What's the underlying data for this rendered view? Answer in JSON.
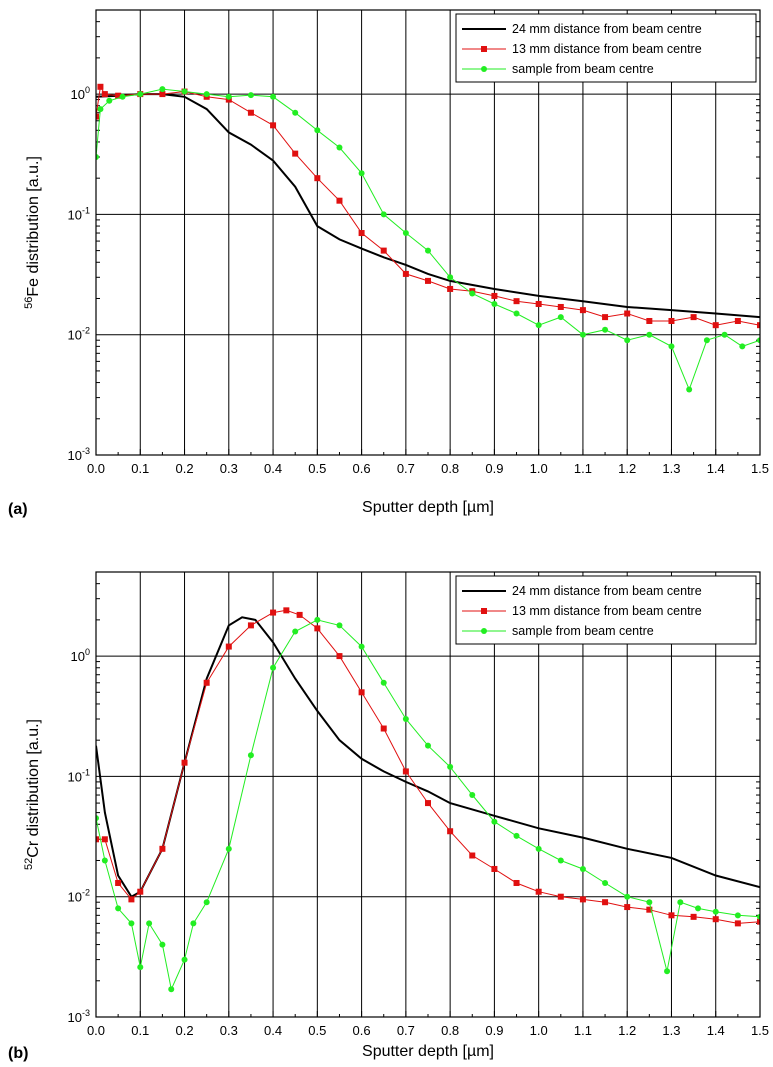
{
  "chart_data": [
    {
      "type": "line",
      "panel_label": "(a)",
      "xlabel": "Sputter depth [µm]",
      "ylabel_superscript": "56",
      "ylabel_rest": "Fe distribution [a.u.]",
      "xlim": [
        0.0,
        1.5
      ],
      "ylim": [
        0.001,
        5
      ],
      "yscale": "log",
      "grid": true,
      "legend_position": "top-right",
      "xticks": [
        "0.0",
        "0.1",
        "0.2",
        "0.3",
        "0.4",
        "0.5",
        "0.6",
        "0.7",
        "0.8",
        "0.9",
        "1.0",
        "1.1",
        "1.2",
        "1.3",
        "1.4",
        "1.5"
      ],
      "yticks": [
        {
          "value": 1,
          "base": "10",
          "exp": "0"
        },
        {
          "value": 0.1,
          "base": "10",
          "exp": "-1"
        },
        {
          "value": 0.01,
          "base": "10",
          "exp": "-2"
        },
        {
          "value": 0.001,
          "base": "10",
          "exp": "-3"
        }
      ],
      "series": [
        {
          "name": "24 mm distance from beam centre",
          "color": "#000000",
          "marker": "none",
          "points": [
            [
              0.0,
              0.95
            ],
            [
              0.05,
              0.97
            ],
            [
              0.1,
              1.0
            ],
            [
              0.15,
              1.0
            ],
            [
              0.2,
              0.95
            ],
            [
              0.25,
              0.75
            ],
            [
              0.3,
              0.48
            ],
            [
              0.35,
              0.38
            ],
            [
              0.4,
              0.28
            ],
            [
              0.45,
              0.17
            ],
            [
              0.5,
              0.08
            ],
            [
              0.55,
              0.062
            ],
            [
              0.6,
              0.052
            ],
            [
              0.65,
              0.044
            ],
            [
              0.7,
              0.038
            ],
            [
              0.75,
              0.032
            ],
            [
              0.8,
              0.028
            ],
            [
              0.9,
              0.024
            ],
            [
              1.0,
              0.021
            ],
            [
              1.1,
              0.019
            ],
            [
              1.2,
              0.017
            ],
            [
              1.3,
              0.016
            ],
            [
              1.4,
              0.015
            ],
            [
              1.5,
              0.014
            ]
          ]
        },
        {
          "name": "13 mm distance from beam centre",
          "color": "#e01010",
          "marker": "square",
          "points": [
            [
              0.0,
              0.65
            ],
            [
              0.01,
              1.15
            ],
            [
              0.02,
              1.0
            ],
            [
              0.05,
              0.97
            ],
            [
              0.1,
              1.0
            ],
            [
              0.15,
              1.0
            ],
            [
              0.2,
              1.05
            ],
            [
              0.25,
              0.95
            ],
            [
              0.3,
              0.9
            ],
            [
              0.35,
              0.7
            ],
            [
              0.4,
              0.55
            ],
            [
              0.45,
              0.32
            ],
            [
              0.5,
              0.2
            ],
            [
              0.55,
              0.13
            ],
            [
              0.6,
              0.07
            ],
            [
              0.65,
              0.05
            ],
            [
              0.7,
              0.032
            ],
            [
              0.75,
              0.028
            ],
            [
              0.8,
              0.024
            ],
            [
              0.85,
              0.023
            ],
            [
              0.9,
              0.021
            ],
            [
              0.95,
              0.019
            ],
            [
              1.0,
              0.018
            ],
            [
              1.05,
              0.017
            ],
            [
              1.1,
              0.016
            ],
            [
              1.15,
              0.014
            ],
            [
              1.2,
              0.015
            ],
            [
              1.25,
              0.013
            ],
            [
              1.3,
              0.013
            ],
            [
              1.35,
              0.014
            ],
            [
              1.4,
              0.012
            ],
            [
              1.45,
              0.013
            ],
            [
              1.5,
              0.012
            ]
          ]
        },
        {
          "name": "sample from beam centre",
          "color": "#22ee22",
          "marker": "circle",
          "points": [
            [
              0.0,
              0.3
            ],
            [
              0.01,
              0.75
            ],
            [
              0.03,
              0.88
            ],
            [
              0.06,
              0.95
            ],
            [
              0.1,
              1.0
            ],
            [
              0.15,
              1.1
            ],
            [
              0.2,
              1.05
            ],
            [
              0.25,
              1.0
            ],
            [
              0.3,
              0.95
            ],
            [
              0.35,
              0.98
            ],
            [
              0.4,
              0.95
            ],
            [
              0.45,
              0.7
            ],
            [
              0.5,
              0.5
            ],
            [
              0.55,
              0.36
            ],
            [
              0.6,
              0.22
            ],
            [
              0.65,
              0.1
            ],
            [
              0.7,
              0.07
            ],
            [
              0.75,
              0.05
            ],
            [
              0.8,
              0.03
            ],
            [
              0.85,
              0.022
            ],
            [
              0.9,
              0.018
            ],
            [
              0.95,
              0.015
            ],
            [
              1.0,
              0.012
            ],
            [
              1.05,
              0.014
            ],
            [
              1.1,
              0.01
            ],
            [
              1.15,
              0.011
            ],
            [
              1.2,
              0.009
            ],
            [
              1.25,
              0.01
            ],
            [
              1.3,
              0.008
            ],
            [
              1.34,
              0.0035
            ],
            [
              1.38,
              0.009
            ],
            [
              1.42,
              0.01
            ],
            [
              1.46,
              0.008
            ],
            [
              1.5,
              0.009
            ]
          ]
        }
      ]
    },
    {
      "type": "line",
      "panel_label": "(b)",
      "xlabel": "Sputter depth [µm]",
      "ylabel_superscript": "52",
      "ylabel_rest": "Cr distribution [a.u.]",
      "xlim": [
        0.0,
        1.5
      ],
      "ylim": [
        0.001,
        5
      ],
      "yscale": "log",
      "grid": true,
      "legend_position": "top-right",
      "xticks": [
        "0.0",
        "0.1",
        "0.2",
        "0.3",
        "0.4",
        "0.5",
        "0.6",
        "0.7",
        "0.8",
        "0.9",
        "1.0",
        "1.1",
        "1.2",
        "1.3",
        "1.4",
        "1.5"
      ],
      "yticks": [
        {
          "value": 1,
          "base": "10",
          "exp": "0"
        },
        {
          "value": 0.1,
          "base": "10",
          "exp": "-1"
        },
        {
          "value": 0.01,
          "base": "10",
          "exp": "-2"
        },
        {
          "value": 0.001,
          "base": "10",
          "exp": "-3"
        }
      ],
      "series": [
        {
          "name": "24 mm distance from beam centre",
          "color": "#000000",
          "marker": "none",
          "points": [
            [
              0.0,
              0.18
            ],
            [
              0.02,
              0.05
            ],
            [
              0.05,
              0.015
            ],
            [
              0.08,
              0.01
            ],
            [
              0.1,
              0.011
            ],
            [
              0.15,
              0.025
            ],
            [
              0.2,
              0.13
            ],
            [
              0.25,
              0.65
            ],
            [
              0.3,
              1.8
            ],
            [
              0.33,
              2.1
            ],
            [
              0.36,
              2.0
            ],
            [
              0.4,
              1.3
            ],
            [
              0.45,
              0.65
            ],
            [
              0.5,
              0.35
            ],
            [
              0.55,
              0.2
            ],
            [
              0.6,
              0.14
            ],
            [
              0.65,
              0.11
            ],
            [
              0.7,
              0.09
            ],
            [
              0.75,
              0.075
            ],
            [
              0.8,
              0.06
            ],
            [
              0.9,
              0.047
            ],
            [
              1.0,
              0.037
            ],
            [
              1.1,
              0.031
            ],
            [
              1.2,
              0.025
            ],
            [
              1.3,
              0.021
            ],
            [
              1.4,
              0.015
            ],
            [
              1.5,
              0.012
            ]
          ]
        },
        {
          "name": "13 mm distance from beam centre",
          "color": "#e01010",
          "marker": "square",
          "points": [
            [
              0.0,
              0.03
            ],
            [
              0.02,
              0.03
            ],
            [
              0.05,
              0.013
            ],
            [
              0.08,
              0.0095
            ],
            [
              0.1,
              0.011
            ],
            [
              0.15,
              0.025
            ],
            [
              0.2,
              0.13
            ],
            [
              0.25,
              0.6
            ],
            [
              0.3,
              1.2
            ],
            [
              0.35,
              1.8
            ],
            [
              0.4,
              2.3
            ],
            [
              0.43,
              2.4
            ],
            [
              0.46,
              2.2
            ],
            [
              0.5,
              1.7
            ],
            [
              0.55,
              1.0
            ],
            [
              0.6,
              0.5
            ],
            [
              0.65,
              0.25
            ],
            [
              0.7,
              0.11
            ],
            [
              0.75,
              0.06
            ],
            [
              0.8,
              0.035
            ],
            [
              0.85,
              0.022
            ],
            [
              0.9,
              0.017
            ],
            [
              0.95,
              0.013
            ],
            [
              1.0,
              0.011
            ],
            [
              1.05,
              0.01
            ],
            [
              1.1,
              0.0095
            ],
            [
              1.15,
              0.009
            ],
            [
              1.2,
              0.0082
            ],
            [
              1.25,
              0.0078
            ],
            [
              1.3,
              0.007
            ],
            [
              1.35,
              0.0068
            ],
            [
              1.4,
              0.0065
            ],
            [
              1.45,
              0.006
            ],
            [
              1.5,
              0.0062
            ]
          ]
        },
        {
          "name": "sample from beam centre",
          "color": "#22ee22",
          "marker": "circle",
          "points": [
            [
              0.0,
              0.045
            ],
            [
              0.02,
              0.02
            ],
            [
              0.05,
              0.008
            ],
            [
              0.08,
              0.006
            ],
            [
              0.1,
              0.0026
            ],
            [
              0.12,
              0.006
            ],
            [
              0.15,
              0.004
            ],
            [
              0.17,
              0.0017
            ],
            [
              0.2,
              0.003
            ],
            [
              0.22,
              0.006
            ],
            [
              0.25,
              0.009
            ],
            [
              0.3,
              0.025
            ],
            [
              0.35,
              0.15
            ],
            [
              0.4,
              0.8
            ],
            [
              0.45,
              1.6
            ],
            [
              0.5,
              2.0
            ],
            [
              0.55,
              1.8
            ],
            [
              0.6,
              1.2
            ],
            [
              0.65,
              0.6
            ],
            [
              0.7,
              0.3
            ],
            [
              0.75,
              0.18
            ],
            [
              0.8,
              0.12
            ],
            [
              0.85,
              0.07
            ],
            [
              0.9,
              0.042
            ],
            [
              0.95,
              0.032
            ],
            [
              1.0,
              0.025
            ],
            [
              1.05,
              0.02
            ],
            [
              1.1,
              0.017
            ],
            [
              1.15,
              0.013
            ],
            [
              1.2,
              0.01
            ],
            [
              1.25,
              0.009
            ],
            [
              1.29,
              0.0024
            ],
            [
              1.32,
              0.009
            ],
            [
              1.36,
              0.008
            ],
            [
              1.4,
              0.0075
            ],
            [
              1.45,
              0.007
            ],
            [
              1.5,
              0.0068
            ]
          ]
        }
      ]
    }
  ]
}
